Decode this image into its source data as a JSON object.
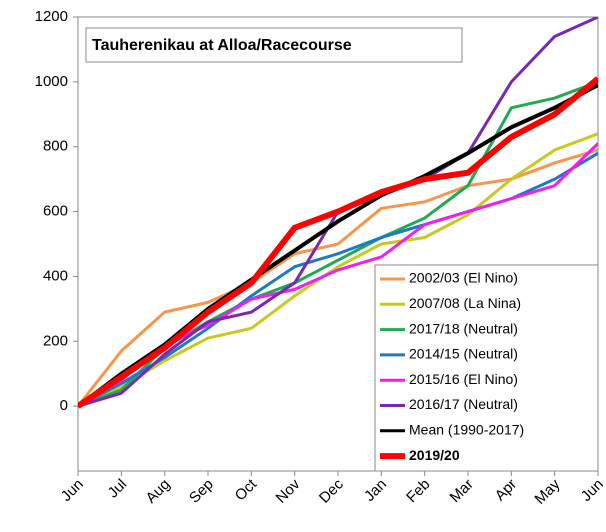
{
  "chart_data": {
    "type": "line",
    "title": "Tauherenikau at Alloa/Racecourse",
    "categories": [
      "Jun",
      "Jul",
      "Aug",
      "Sep",
      "Oct",
      "Nov",
      "Dec",
      "Jan",
      "Feb",
      "Mar",
      "Apr",
      "May",
      "Jun"
    ],
    "ylim": [
      -200,
      1200
    ],
    "yticks": [
      0,
      200,
      400,
      600,
      800,
      1000,
      1200
    ],
    "series": [
      {
        "name": "2002/03 (El Nino)",
        "color": "#f7964a",
        "values": [
          0,
          170,
          290,
          320,
          380,
          470,
          500,
          610,
          630,
          680,
          700,
          750,
          790
        ]
      },
      {
        "name": "2007/08 (La Nina)",
        "color": "#c8c81e",
        "values": [
          0,
          60,
          140,
          210,
          240,
          340,
          430,
          500,
          520,
          590,
          700,
          790,
          840
        ]
      },
      {
        "name": "2017/18 (Neutral)",
        "color": "#1eaa50",
        "values": [
          0,
          50,
          180,
          260,
          330,
          380,
          450,
          520,
          580,
          680,
          920,
          950,
          1000
        ]
      },
      {
        "name": "2014/15 (Neutral)",
        "color": "#1e78c8",
        "values": [
          0,
          70,
          150,
          240,
          340,
          430,
          470,
          520,
          560,
          600,
          640,
          700,
          780
        ]
      },
      {
        "name": "2015/16 (El Nino)",
        "color": "#f01ef0",
        "values": [
          0,
          80,
          190,
          250,
          330,
          360,
          420,
          460,
          560,
          600,
          640,
          680,
          810
        ]
      },
      {
        "name": "2016/17 (Neutral)",
        "color": "#7828b4",
        "values": [
          0,
          40,
          160,
          260,
          290,
          380,
          600,
          650,
          700,
          780,
          1000,
          1140,
          1200
        ]
      },
      {
        "name": "Mean (1990-2017)",
        "color": "#000000",
        "values": [
          0,
          100,
          190,
          300,
          390,
          480,
          570,
          650,
          710,
          780,
          860,
          920,
          990
        ]
      },
      {
        "name": "2019/20",
        "color": "#ff0000",
        "values": [
          0,
          90,
          180,
          290,
          380,
          550,
          600,
          660,
          700,
          720,
          830,
          900,
          1010
        ]
      }
    ]
  }
}
